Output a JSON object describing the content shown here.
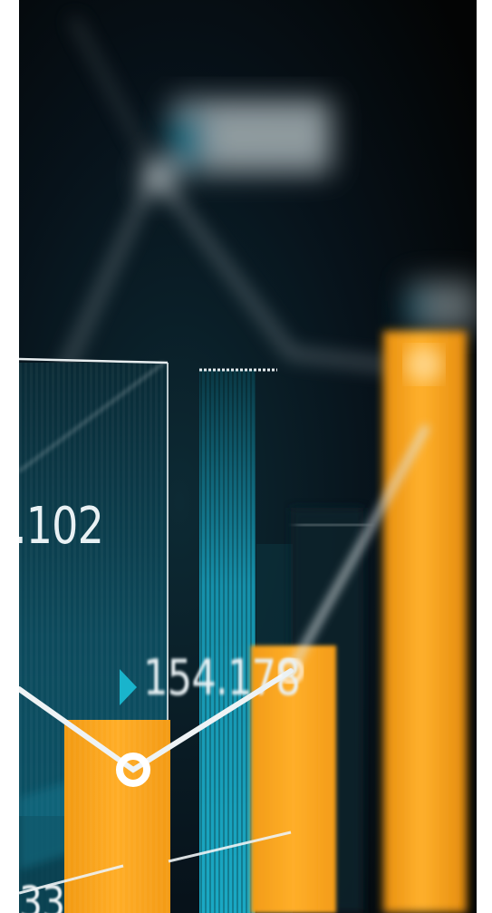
{
  "image": {
    "labels": {
      "value_102": ".102",
      "value_154": "154.178",
      "value_33": "33"
    },
    "colors": {
      "background": "#050607",
      "teal": "#0f5f73",
      "cyan": "#19b4cc",
      "orange": "#f7a21a",
      "line": "#e8eef0"
    }
  }
}
